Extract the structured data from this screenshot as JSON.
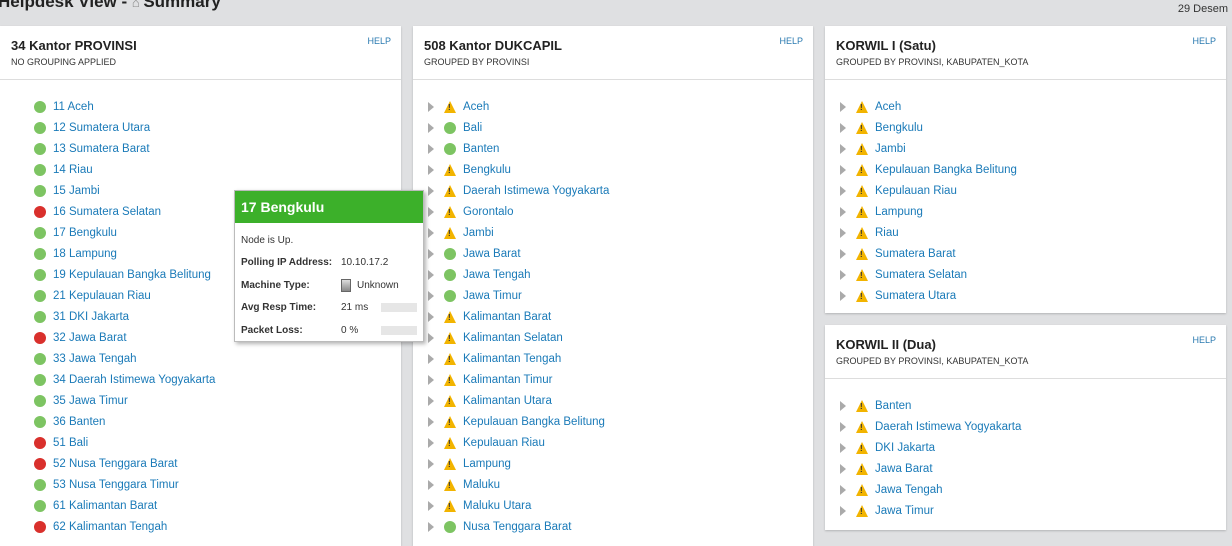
{
  "page": {
    "title": "Helpdesk View - ",
    "title2": "Summary",
    "date": "29 Desem"
  },
  "colors": {
    "up": "#7dc462",
    "down": "#d9302c",
    "warning": "#f2b400"
  },
  "panels": [
    {
      "title": "34 Kantor PROVINSI",
      "subtitle": "NO GROUPING APPLIED",
      "help": "HELP",
      "expandable": false,
      "items": [
        [
          "11 Aceh",
          "up"
        ],
        [
          "12 Sumatera Utara",
          "up"
        ],
        [
          "13 Sumatera Barat",
          "up"
        ],
        [
          "14 Riau",
          "up"
        ],
        [
          "15 Jambi",
          "up"
        ],
        [
          "16 Sumatera Selatan",
          "down"
        ],
        [
          "17 Bengkulu",
          "up"
        ],
        [
          "18 Lampung",
          "up"
        ],
        [
          "19 Kepulauan Bangka Belitung",
          "up"
        ],
        [
          "21 Kepulauan Riau",
          "up"
        ],
        [
          "31 DKI Jakarta",
          "up"
        ],
        [
          "32 Jawa Barat",
          "down"
        ],
        [
          "33 Jawa Tengah",
          "up"
        ],
        [
          "34 Daerah Istimewa Yogyakarta",
          "up"
        ],
        [
          "35 Jawa Timur",
          "up"
        ],
        [
          "36 Banten",
          "up"
        ],
        [
          "51 Bali",
          "down"
        ],
        [
          "52 Nusa Tenggara Barat",
          "down"
        ],
        [
          "53 Nusa Tenggara Timur",
          "up"
        ],
        [
          "61 Kalimantan Barat",
          "up"
        ],
        [
          "62 Kalimantan Tengah",
          "down"
        ]
      ]
    },
    {
      "title": "508 Kantor DUKCAPIL",
      "subtitle": "GROUPED BY PROVINSI",
      "help": "HELP",
      "expandable": true,
      "items": [
        [
          "Aceh",
          "warning"
        ],
        [
          "Bali",
          "up"
        ],
        [
          "Banten",
          "up"
        ],
        [
          "Bengkulu",
          "warning"
        ],
        [
          "Daerah Istimewa Yogyakarta",
          "warning"
        ],
        [
          "Gorontalo",
          "warning"
        ],
        [
          "Jambi",
          "warning"
        ],
        [
          "Jawa Barat",
          "up"
        ],
        [
          "Jawa Tengah",
          "up"
        ],
        [
          "Jawa Timur",
          "up"
        ],
        [
          "Kalimantan Barat",
          "warning"
        ],
        [
          "Kalimantan Selatan",
          "warning"
        ],
        [
          "Kalimantan Tengah",
          "warning"
        ],
        [
          "Kalimantan Timur",
          "warning"
        ],
        [
          "Kalimantan Utara",
          "warning"
        ],
        [
          "Kepulauan Bangka Belitung",
          "warning"
        ],
        [
          "Kepulauan Riau",
          "warning"
        ],
        [
          "Lampung",
          "warning"
        ],
        [
          "Maluku",
          "warning"
        ],
        [
          "Maluku Utara",
          "warning"
        ],
        [
          "Nusa Tenggara Barat",
          "up"
        ]
      ]
    },
    {
      "title": "KORWIL I (Satu)",
      "subtitle": "GROUPED BY PROVINSI, KABUPATEN_KOTA",
      "help": "HELP",
      "expandable": true,
      "items": [
        [
          "Aceh",
          "warning"
        ],
        [
          "Bengkulu",
          "warning"
        ],
        [
          "Jambi",
          "warning"
        ],
        [
          "Kepulauan Bangka Belitung",
          "warning"
        ],
        [
          "Kepulauan Riau",
          "warning"
        ],
        [
          "Lampung",
          "warning"
        ],
        [
          "Riau",
          "warning"
        ],
        [
          "Sumatera Barat",
          "warning"
        ],
        [
          "Sumatera Selatan",
          "warning"
        ],
        [
          "Sumatera Utara",
          "warning"
        ]
      ]
    },
    {
      "title": "KORWIL II (Dua)",
      "subtitle": "GROUPED BY PROVINSI, KABUPATEN_KOTA",
      "help": "HELP",
      "expandable": true,
      "items": [
        [
          "Banten",
          "warning"
        ],
        [
          "Daerah Istimewa Yogyakarta",
          "warning"
        ],
        [
          "DKI Jakarta",
          "warning"
        ],
        [
          "Jawa Barat",
          "warning"
        ],
        [
          "Jawa Tengah",
          "warning"
        ],
        [
          "Jawa Timur",
          "warning"
        ]
      ]
    }
  ],
  "tooltip": {
    "title": "17 Bengkulu",
    "status": "Node is Up.",
    "ip_label": "Polling IP Address:",
    "ip": "10.10.17.2",
    "machine_label": "Machine Type:",
    "machine": "Unknown",
    "resp_label": "Avg Resp Time:",
    "resp": "21 ms",
    "resp_fraction": 0.0,
    "loss_label": "Packet Loss:",
    "loss": "0 %",
    "loss_fraction": 0.0
  }
}
